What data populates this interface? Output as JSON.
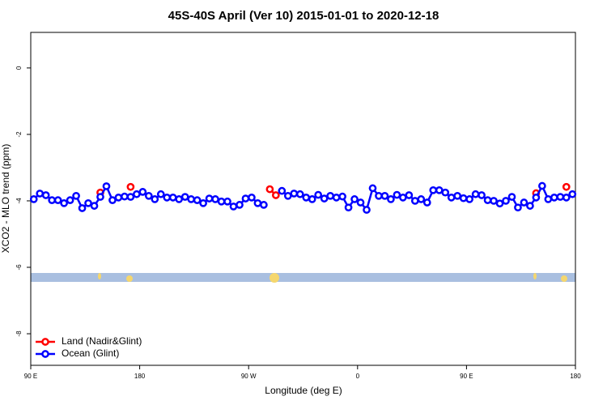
{
  "chart_data": {
    "type": "line",
    "title": "45S-40S April (Ver 10)   2015-01-01 to 2020-12-18",
    "x_label": "Longitude (deg E)",
    "y_label": "XCO2 - MLO trend (ppm)",
    "xlim": [
      90,
      540
    ],
    "xticks": [
      {
        "value": 90,
        "label": "90 E"
      },
      {
        "value": 180,
        "label": "180"
      },
      {
        "value": 270,
        "label": "90 W"
      },
      {
        "value": 360,
        "label": "0"
      },
      {
        "value": 450,
        "label": "90 E"
      },
      {
        "value": 540,
        "label": "180"
      }
    ],
    "ylim": [
      -8.95,
      1.07
    ],
    "yticks": [
      0,
      -2,
      -4,
      -6,
      -8
    ],
    "legend": "bottom-left",
    "x": [
      92.5,
      97.5,
      102.5,
      107.5,
      112.5,
      117.5,
      122.5,
      127.5,
      132.5,
      137.5,
      142.5,
      147.5,
      152.5,
      157.5,
      162.5,
      167.5,
      172.5,
      177.5,
      182.5,
      187.5,
      192.5,
      197.5,
      202.5,
      207.5,
      212.5,
      217.5,
      222.5,
      227.5,
      232.5,
      237.5,
      242.5,
      247.5,
      252.5,
      257.5,
      262.5,
      267.5,
      272.5,
      277.5,
      282.5,
      287.5,
      292.5,
      297.5,
      302.5,
      307.5,
      312.5,
      317.5,
      322.5,
      327.5,
      332.5,
      337.5,
      342.5,
      347.5,
      352.5,
      357.5,
      362.5,
      367.5,
      372.5,
      377.5,
      382.5,
      387.5,
      392.5,
      397.5,
      402.5,
      407.5,
      412.5,
      417.5,
      422.5,
      427.5,
      432.5,
      437.5,
      442.5,
      447.5,
      452.5,
      457.5,
      462.5,
      467.5,
      472.5,
      477.5,
      482.5,
      487.5,
      492.5,
      497.5,
      502.5,
      507.5,
      512.5,
      517.5,
      522.5,
      527.5,
      532.5,
      537.5
    ],
    "series": [
      {
        "name": "Land (Nadir&Glint)",
        "color": "#ff0000",
        "values": [
          null,
          null,
          null,
          null,
          null,
          null,
          null,
          null,
          null,
          null,
          null,
          -3.75,
          null,
          null,
          null,
          null,
          -3.58,
          null,
          null,
          null,
          null,
          null,
          null,
          null,
          null,
          null,
          null,
          null,
          null,
          null,
          null,
          null,
          null,
          null,
          null,
          null,
          null,
          null,
          null,
          -3.65,
          -3.83,
          null,
          null,
          null,
          null,
          null,
          null,
          null,
          null,
          null,
          null,
          null,
          null,
          null,
          null,
          null,
          null,
          null,
          null,
          null,
          null,
          null,
          null,
          null,
          null,
          null,
          null,
          null,
          null,
          null,
          null,
          null,
          null,
          null,
          null,
          null,
          null,
          null,
          null,
          null,
          null,
          null,
          null,
          -3.77,
          null,
          null,
          null,
          null,
          -3.58,
          null
        ]
      },
      {
        "name": "Ocean (Glint)",
        "color": "#0000ff",
        "values": [
          -3.95,
          -3.78,
          -3.83,
          -3.98,
          -3.98,
          -4.07,
          -3.98,
          -3.85,
          -4.22,
          -4.07,
          -4.15,
          -3.88,
          -3.56,
          -3.98,
          -3.9,
          -3.87,
          -3.88,
          -3.8,
          -3.73,
          -3.85,
          -3.95,
          -3.8,
          -3.9,
          -3.9,
          -3.95,
          -3.88,
          -3.95,
          -3.98,
          -4.07,
          -3.93,
          -3.95,
          -4.02,
          -4.02,
          -4.17,
          -4.12,
          -3.93,
          -3.9,
          -4.07,
          -4.12,
          null,
          null,
          -3.7,
          -3.85,
          -3.78,
          -3.8,
          -3.9,
          -3.95,
          -3.82,
          -3.93,
          -3.85,
          -3.9,
          -3.87,
          -4.2,
          -3.95,
          -4.05,
          -4.27,
          -3.62,
          -3.85,
          -3.85,
          -3.95,
          -3.82,
          -3.9,
          -3.83,
          -4.0,
          -3.95,
          -4.05,
          -3.68,
          -3.68,
          -3.75,
          -3.9,
          -3.85,
          -3.92,
          -3.95,
          -3.8,
          -3.83,
          -3.98,
          -4.0,
          -4.08,
          -4.0,
          -3.88,
          -4.2,
          -4.05,
          -4.15,
          -3.9,
          -3.55,
          -3.95,
          -3.9,
          -3.88,
          -3.9,
          -3.8
        ]
      }
    ]
  }
}
